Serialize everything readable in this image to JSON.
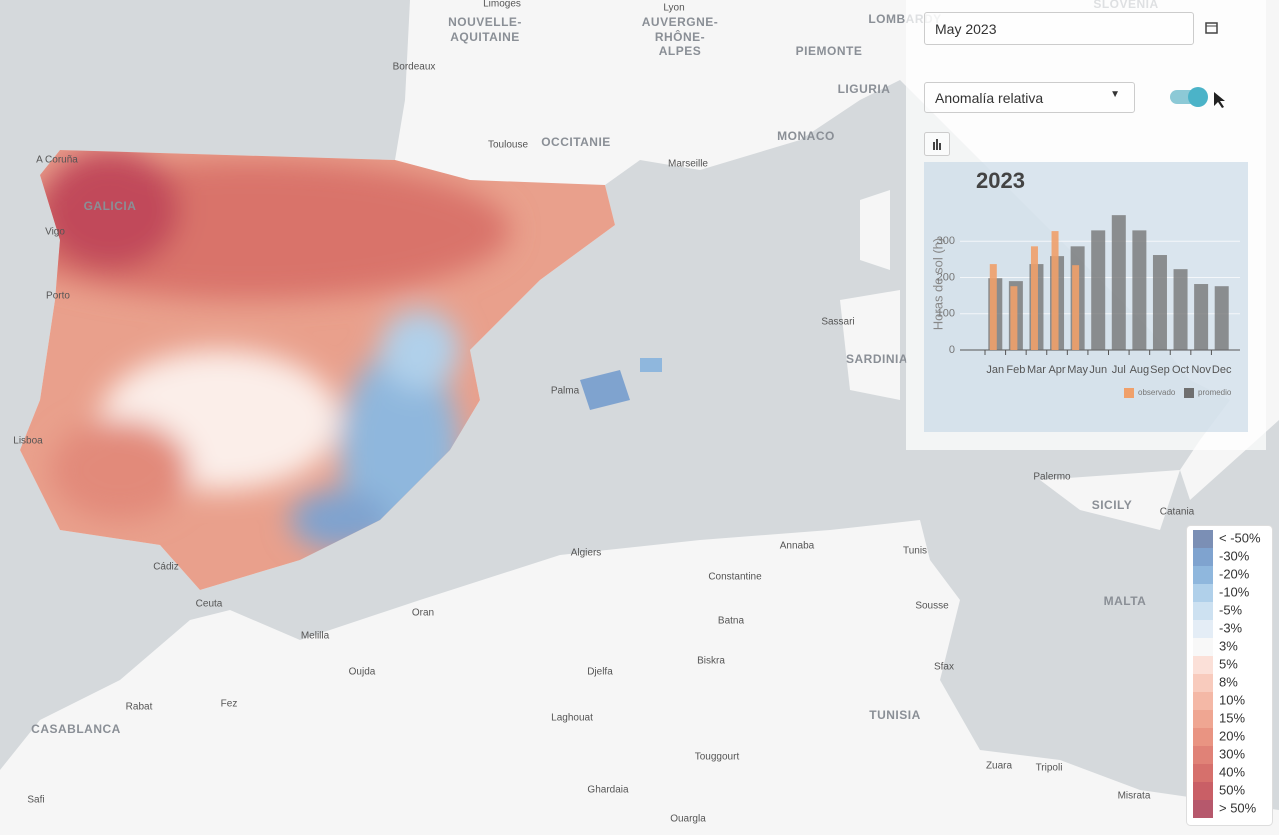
{
  "controls": {
    "date": "May 2023",
    "variable": "Anomalía relativa"
  },
  "chart_data": {
    "type": "bar",
    "title": "2023",
    "y_label": "Horas de sol (h)",
    "categories": [
      "Jan",
      "Feb",
      "Mar",
      "Apr",
      "May",
      "Jun",
      "Jul",
      "Aug",
      "Sep",
      "Oct",
      "Nov",
      "Dec"
    ],
    "series": [
      {
        "name": "observado",
        "color": "#f0a06a",
        "values": [
          237,
          176,
          286,
          328,
          234,
          null,
          null,
          null,
          null,
          null,
          null,
          null
        ]
      },
      {
        "name": "promedio",
        "color": "#6f6f6f",
        "values": [
          198,
          190,
          237,
          259,
          286,
          330,
          372,
          330,
          262,
          223,
          182,
          176
        ]
      }
    ],
    "ylim": [
      0,
      400
    ],
    "yticks": [
      0,
      100,
      200,
      300
    ],
    "grid": true,
    "legend": "bottom right"
  },
  "legend": {
    "labels": [
      "< -50%",
      "-30%",
      "-20%",
      "-10%",
      "-5%",
      "-3%",
      "3%",
      "5%",
      "8%",
      "10%",
      "15%",
      "20%",
      "30%",
      "40%",
      "50%",
      "> 50%"
    ],
    "colors": [
      "#7b8fb5",
      "#7fa3cf",
      "#8fb7dd",
      "#b0d0ea",
      "#cde1f1",
      "#e4edf6",
      "#f8f8f8",
      "#fbe0d8",
      "#f8cbbd",
      "#f4b8a6",
      "#efa692",
      "#e99482",
      "#e08277",
      "#d6706c",
      "#c95f66",
      "#b6586c"
    ]
  },
  "map_labels": [
    "Limoges",
    "NOUVELLE-",
    "AQUITAINE",
    "Bordeaux",
    "Toulouse",
    "OCCITANIE",
    "Lyon",
    "AUVERGNE-",
    "RHÔNE-",
    "ALPES",
    "PIEMONTE",
    "LIGURIA",
    "MONACO",
    "Marseille",
    "LOMBARDY",
    "SLOVENIA",
    "Sassari",
    "SARDINIA",
    "Palermo",
    "SICILY",
    "Catania",
    "MALTA",
    "Tunis",
    "TUNISIA",
    "Sousse",
    "Sfax",
    "Annaba",
    "Constantine",
    "Algiers",
    "Oran",
    "Melilla",
    "Oujda",
    "Rabat",
    "Fez",
    "CASABLANCA",
    "Safi",
    "Batna",
    "Biskra",
    "Djelfa",
    "Laghouat",
    "Touggourt",
    "Ghardaia",
    "Ouargla",
    "Zuara",
    "Tripoli",
    "Misrata",
    "Ceuta",
    "Cádiz",
    "Lisboa",
    "Porto",
    "A Coruña",
    "Vigo",
    "Palma",
    "GALICIA"
  ]
}
